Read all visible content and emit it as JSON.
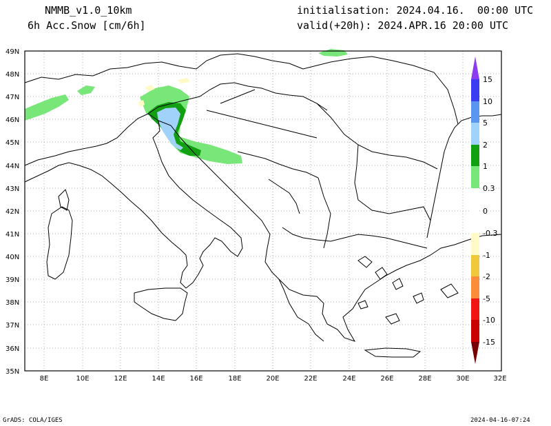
{
  "header": {
    "model": "NMMB_v1.0_10km",
    "field": "6h Acc.Snow [cm/6h]",
    "init": "initialisation: 2024.04.16.  00:00 UTC",
    "valid": "valid(+20h): 2024.APR.16 20:00 UTC"
  },
  "footer": {
    "credit": "GrADS: COLA/IGES",
    "timestamp": "2024-04-16-07:24"
  },
  "map": {
    "lon_range": [
      7,
      32
    ],
    "lat_range": [
      35,
      49
    ],
    "lon_ticks": [
      "8E",
      "10E",
      "12E",
      "14E",
      "16E",
      "18E",
      "20E",
      "22E",
      "24E",
      "26E",
      "28E",
      "30E",
      "32E"
    ],
    "lat_ticks": [
      "35N",
      "36N",
      "37N",
      "38N",
      "39N",
      "40N",
      "41N",
      "42N",
      "43N",
      "44N",
      "45N",
      "46N",
      "47N",
      "48N",
      "49N"
    ],
    "gridlines": "dotted"
  },
  "colorbar": {
    "labels": [
      "15",
      "10",
      "5",
      "2",
      "1",
      "0.3",
      "0",
      "-0.3",
      "-1",
      "-2",
      "-5",
      "-10",
      "-15"
    ],
    "colors": {
      "p15": "#8c3cf0",
      "p10": "#3c3cf0",
      "p5": "#5a96f0",
      "p2": "#a0d2fa",
      "p1": "#12a012",
      "p03": "#78e678",
      "n03": "#fffac8",
      "n1": "#f0c83c",
      "n2": "#fa8c3c",
      "n5": "#f01414",
      "n10": "#c80000",
      "n15": "#780000"
    }
  }
}
